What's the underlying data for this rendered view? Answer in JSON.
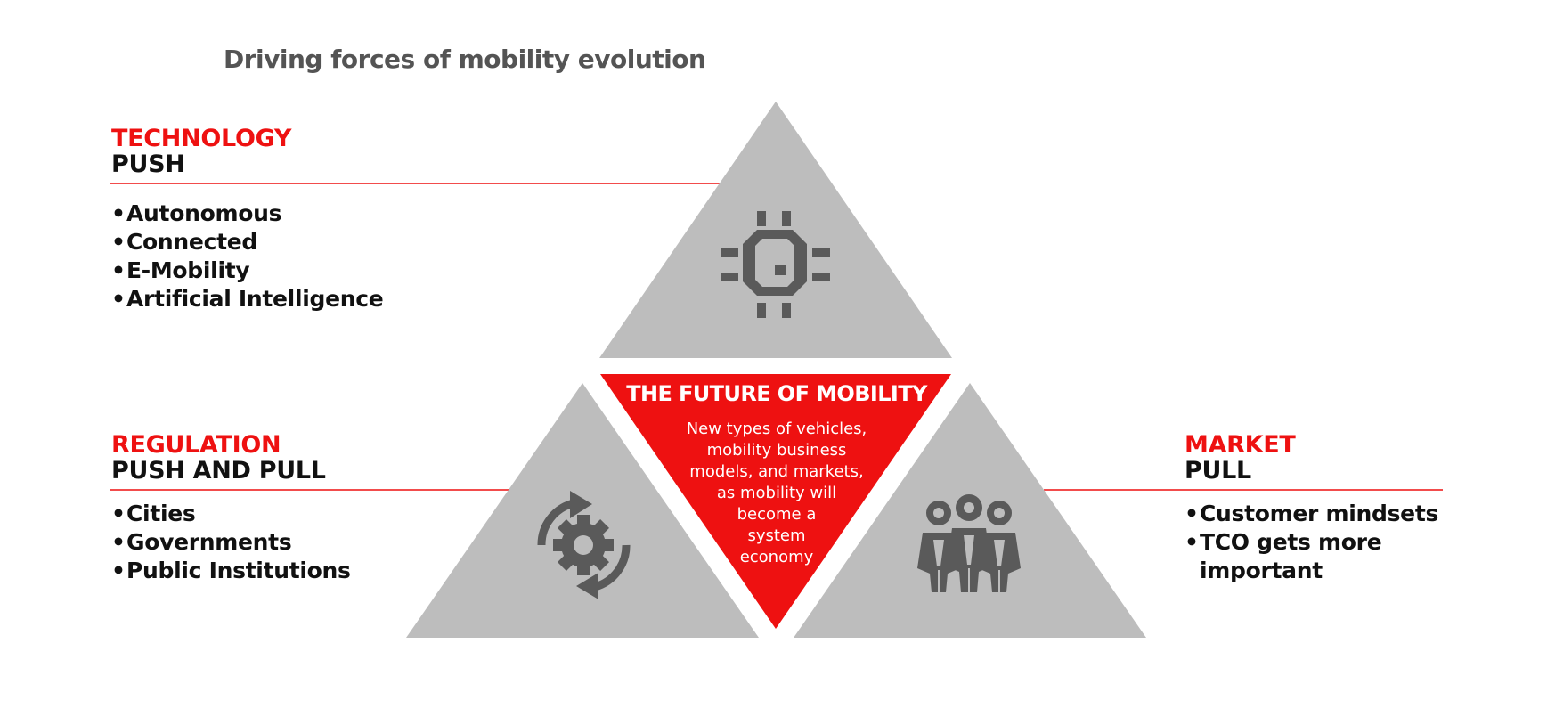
{
  "title": "Driving forces of mobility evolution",
  "colors": {
    "accent": "#ee1111",
    "triangle_gray": "#bdbdbd",
    "icon_gray": "#5a5a5a"
  },
  "technology": {
    "heading_red": "TECHNOLOGY",
    "heading_black": "PUSH",
    "items": [
      "Autonomous",
      "Connected",
      "E-Mobility",
      "Artificial Intelligence"
    ],
    "icon": "microchip-icon"
  },
  "regulation": {
    "heading_red": "REGULATION",
    "heading_black": "PUSH AND PULL",
    "items": [
      "Cities",
      "Governments",
      "Public Institutions"
    ],
    "icon": "gear-cycle-icon"
  },
  "market": {
    "heading_red": "MARKET",
    "heading_black": "PULL",
    "items": [
      "Customer mindsets",
      "TCO gets more",
      "important"
    ],
    "icon": "people-group-icon"
  },
  "center": {
    "title": "THE FUTURE OF MOBILITY",
    "lines": [
      "New types of vehicles,",
      "mobility business",
      "models, and markets,",
      "as mobility will",
      "become a",
      "system",
      "economy"
    ]
  }
}
